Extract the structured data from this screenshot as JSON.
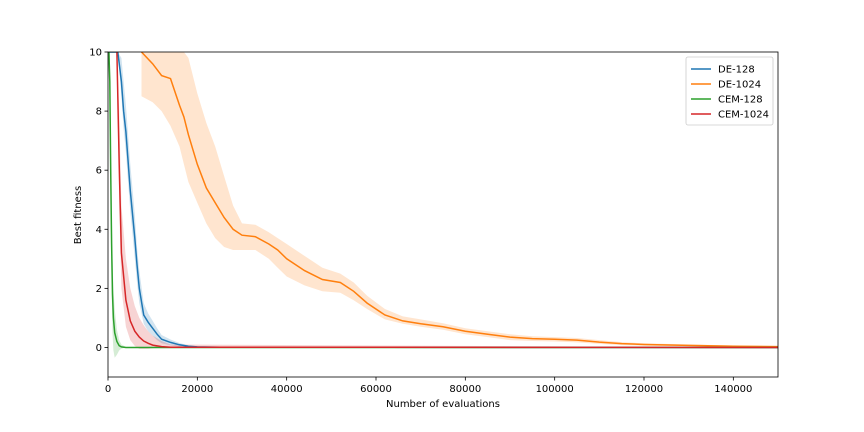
{
  "chart_data": {
    "type": "line",
    "title": "",
    "xlabel": "Number of evaluations",
    "ylabel": "Best fitness",
    "xlim": [
      0,
      150000
    ],
    "ylim": [
      -1,
      10
    ],
    "xticks": [
      0,
      20000,
      40000,
      60000,
      80000,
      100000,
      120000,
      140000
    ],
    "yticks": [
      0,
      2,
      4,
      6,
      8,
      10
    ],
    "grid": false,
    "legend": "top-right",
    "series": [
      {
        "name": "DE-128",
        "color": "#1f77b4",
        "x": [
          0,
          2200,
          3000,
          3500,
          4000,
          5000,
          6000,
          6500,
          7000,
          8000,
          9000,
          10000,
          11000,
          12000,
          14000,
          16000,
          18000,
          20000,
          25000,
          150000
        ],
        "y": [
          10,
          10,
          9.0,
          8.0,
          7.3,
          5.3,
          3.7,
          2.8,
          2.0,
          1.1,
          0.85,
          0.65,
          0.45,
          0.28,
          0.17,
          0.09,
          0.04,
          0.02,
          0.01,
          0.0
        ],
        "lower": [
          10,
          10,
          8.5,
          7.4,
          6.6,
          4.6,
          3.0,
          2.2,
          1.5,
          0.8,
          0.55,
          0.4,
          0.25,
          0.14,
          0.07,
          0.03,
          0.01,
          0.0,
          0.0,
          0.0
        ],
        "upper": [
          10,
          10,
          9.8,
          9.0,
          8.2,
          6.2,
          4.5,
          3.4,
          2.6,
          1.5,
          1.15,
          0.9,
          0.65,
          0.42,
          0.27,
          0.15,
          0.07,
          0.04,
          0.02,
          0.0
        ]
      },
      {
        "name": "DE-1024",
        "color": "#ff7f0e",
        "x": [
          7500,
          10000,
          12000,
          14000,
          16000,
          17000,
          18000,
          20000,
          22000,
          24000,
          26000,
          28000,
          30000,
          33000,
          36000,
          38000,
          40000,
          44000,
          48000,
          52000,
          55000,
          58000,
          62000,
          66000,
          70000,
          75000,
          80000,
          85000,
          90000,
          95000,
          100000,
          105000,
          110000,
          115000,
          120000,
          130000,
          140000,
          150000
        ],
        "y": [
          10,
          9.6,
          9.2,
          9.1,
          8.2,
          7.8,
          7.2,
          6.2,
          5.4,
          4.9,
          4.4,
          4.0,
          3.8,
          3.75,
          3.5,
          3.3,
          3.0,
          2.6,
          2.3,
          2.2,
          1.9,
          1.5,
          1.1,
          0.9,
          0.8,
          0.7,
          0.55,
          0.45,
          0.35,
          0.3,
          0.28,
          0.25,
          0.18,
          0.13,
          0.1,
          0.07,
          0.04,
          0.03
        ],
        "lower": [
          8.5,
          8.3,
          8.0,
          7.5,
          6.8,
          6.2,
          5.6,
          4.9,
          4.2,
          3.7,
          3.4,
          3.3,
          3.3,
          3.3,
          3.0,
          2.7,
          2.4,
          2.1,
          1.9,
          1.85,
          1.6,
          1.3,
          0.95,
          0.8,
          0.7,
          0.6,
          0.45,
          0.35,
          0.25,
          0.22,
          0.2,
          0.17,
          0.12,
          0.08,
          0.06,
          0.04,
          0.02,
          0.01
        ],
        "upper": [
          10,
          10,
          10,
          10,
          10,
          10,
          9.8,
          8.6,
          7.6,
          6.8,
          5.8,
          4.8,
          4.2,
          4.15,
          3.9,
          3.7,
          3.5,
          3.1,
          2.7,
          2.5,
          2.2,
          1.75,
          1.3,
          1.05,
          0.95,
          0.82,
          0.65,
          0.55,
          0.45,
          0.38,
          0.35,
          0.32,
          0.25,
          0.18,
          0.14,
          0.1,
          0.07,
          0.05
        ]
      },
      {
        "name": "CEM-128",
        "color": "#2ca02c",
        "x": [
          0,
          200,
          400,
          600,
          800,
          1000,
          1200,
          1500,
          2000,
          2500,
          3000,
          4000,
          150000
        ],
        "y": [
          10,
          10,
          9.0,
          6.0,
          3.5,
          1.8,
          1.0,
          0.5,
          0.2,
          0.06,
          0.02,
          0.0,
          0.0
        ],
        "lower": [
          10,
          10,
          8.0,
          4.5,
          2.0,
          0.5,
          -0.1,
          -0.35,
          -0.25,
          -0.1,
          -0.04,
          0.0,
          0.0
        ],
        "upper": [
          10,
          10,
          10,
          7.5,
          5.0,
          3.0,
          2.0,
          1.3,
          0.6,
          0.25,
          0.1,
          0.02,
          0.0
        ]
      },
      {
        "name": "CEM-1024",
        "color": "#d62728",
        "x": [
          2000,
          2500,
          3000,
          4000,
          5000,
          6000,
          7000,
          8000,
          9000,
          10000,
          12000,
          14000,
          150000
        ],
        "y": [
          10,
          6.2,
          3.2,
          1.6,
          0.9,
          0.55,
          0.35,
          0.22,
          0.14,
          0.08,
          0.03,
          0.01,
          0.0
        ],
        "lower": [
          10,
          4.8,
          2.0,
          0.7,
          0.25,
          0.05,
          -0.05,
          -0.05,
          -0.05,
          -0.03,
          -0.01,
          0.0,
          0.0
        ],
        "upper": [
          10,
          8.0,
          4.8,
          3.0,
          2.0,
          1.4,
          1.0,
          0.75,
          0.55,
          0.4,
          0.22,
          0.1,
          0.0
        ]
      }
    ]
  }
}
